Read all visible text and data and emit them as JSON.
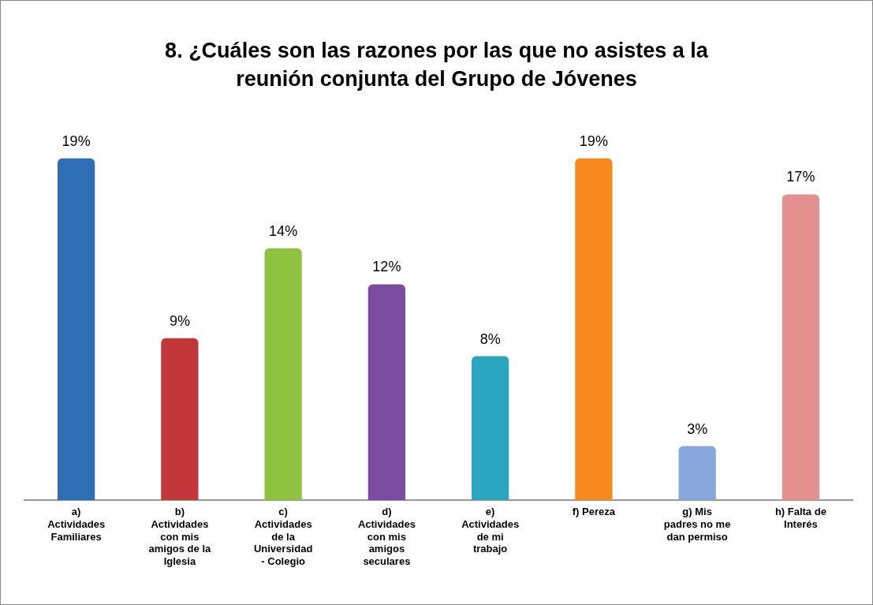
{
  "chart_data": {
    "type": "bar",
    "title": "8. ¿Cuáles son las razones por las que no asistes a la reunión conjunta del Grupo de Jóvenes",
    "categories": [
      "a) Actividades Familiares",
      "b) Actividades con mis amigos de la Iglesia",
      "c) Actividades de la Universidad - Colegio",
      "d) Actividades con mis amigos seculares",
      "e) Actividades de mi trabajo",
      "f) Pereza",
      "g) Mis padres no me dan permiso",
      "h) Falta de Interés"
    ],
    "values": [
      19,
      9,
      14,
      12,
      8,
      19,
      3,
      17
    ],
    "value_labels": [
      "19%",
      "9%",
      "14%",
      "12%",
      "8%",
      "19%",
      "3%",
      "17%"
    ],
    "colors": [
      "#2f6db5",
      "#c2373a",
      "#8fc23e",
      "#7a4c9f",
      "#2ba5c0",
      "#f7891e",
      "#88a7dc",
      "#e3918e"
    ],
    "grid": false,
    "legend": false
  }
}
